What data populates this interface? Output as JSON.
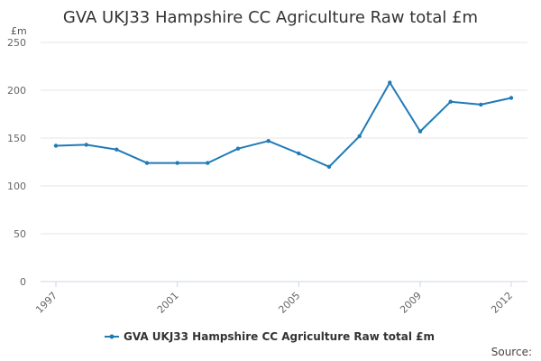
{
  "chart_data": {
    "type": "line",
    "title": "GVA UKJ33 Hampshire CC Agriculture Raw total £m",
    "ylabel": "£m",
    "xlabel": "",
    "ylim": [
      0,
      250
    ],
    "yticks": [
      0,
      50,
      100,
      150,
      200,
      250
    ],
    "xticks": [
      "1997",
      "2001",
      "2005",
      "2009",
      "2012"
    ],
    "grid": true,
    "legend_position": "bottom",
    "series": [
      {
        "name": "GVA UKJ33 Hampshire CC Agriculture Raw total £m",
        "color": "#1f7bb6",
        "x": [
          1997,
          1998,
          1999,
          2000,
          2001,
          2002,
          2003,
          2004,
          2005,
          2006,
          2007,
          2008,
          2009,
          2010,
          2011,
          2012
        ],
        "values": [
          142,
          143,
          138,
          124,
          124,
          124,
          139,
          147,
          134,
          120,
          152,
          208,
          157,
          188,
          185,
          192
        ]
      }
    ],
    "source_label": "Source:"
  }
}
